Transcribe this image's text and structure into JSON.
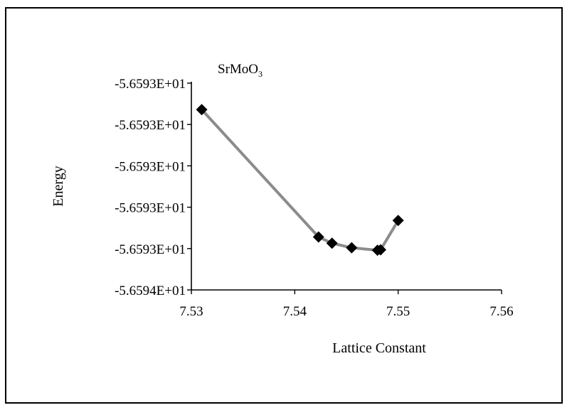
{
  "chart_data": {
    "type": "line",
    "title": "SrMoO",
    "title_subscript": "3",
    "xlabel": "Lattice Constant",
    "ylabel": "Energy",
    "x_ticks": [
      "7.53",
      "7.54",
      "7.55",
      "7.56"
    ],
    "y_ticks": [
      "-5.6593E+01",
      "-5.6593E+01",
      "-5.6593E+01",
      "-5.6593E+01",
      "-5.6593E+01",
      "-5.6594E+01"
    ],
    "xlim": [
      7.53,
      7.56
    ],
    "y_tick_positions_data": [
      0,
      1,
      2,
      3,
      4,
      5
    ],
    "series": [
      {
        "x": [
          7.531,
          7.5423,
          7.5436,
          7.5455,
          7.548,
          7.5483,
          7.55
        ],
        "y": [
          0.64,
          3.72,
          3.87,
          3.98,
          4.04,
          4.03,
          3.32
        ]
      }
    ],
    "line_color": "#8c8c8c",
    "marker_color": "#000000",
    "marker": "diamond",
    "grid": false,
    "legend": "none"
  }
}
